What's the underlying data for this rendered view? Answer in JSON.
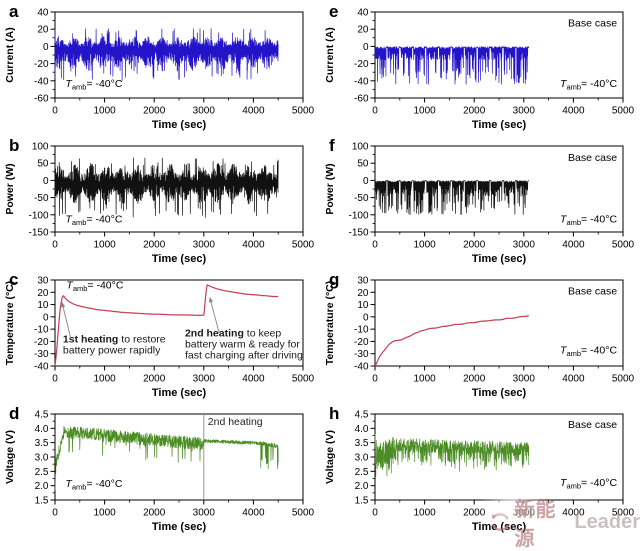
{
  "watermark": {
    "cn": "新能源",
    "en": "Leader"
  },
  "labels": {
    "tamb_T": "T",
    "tamb_sub": "amb",
    "tamb_rest": "= -40°C",
    "base_case": "Base case"
  },
  "chart_data": [
    {
      "letter": "a",
      "type": "line",
      "color": "#2414c8",
      "xlabel": "Time (sec)",
      "ylabel": "Current (A)",
      "xlim": [
        0,
        5000
      ],
      "ylim": [
        -60,
        40
      ],
      "xticks": [
        0,
        1000,
        2000,
        3000,
        4000,
        5000
      ],
      "xtick_labels": [
        "0",
        "1000",
        "2000",
        "3000",
        "4000",
        "5000"
      ],
      "yticks": [
        -60,
        -40,
        -20,
        0,
        20,
        40
      ],
      "ytick_labels": [
        "-60",
        "-40",
        "-20",
        "0",
        "20",
        "40"
      ],
      "x_minor": 500,
      "y_minor": 10,
      "tamb": {
        "x": 210,
        "y": -47,
        "anchor": "start"
      },
      "signal": {
        "kind": "bipolar",
        "t_end": 4500,
        "dt": 4,
        "seed": 11,
        "period": 300,
        "up": [
          -2,
          14
        ],
        "upSpike": [
          14,
          7,
          0.05
        ],
        "dn": [
          6,
          24
        ],
        "dnSpike": [
          28,
          12,
          0.07
        ],
        "head": [
          [
            0,
            20
          ],
          [
            2,
            -38
          ]
        ]
      }
    },
    {
      "letter": "e",
      "type": "line",
      "color": "#2414c8",
      "xlabel": "Time (sec)",
      "ylabel": "Current (A)",
      "xlim": [
        0,
        5000
      ],
      "ylim": [
        -60,
        40
      ],
      "xticks": [
        0,
        1000,
        2000,
        3000,
        4000,
        5000
      ],
      "xtick_labels": [
        "0",
        "1000",
        "2000",
        "3000",
        "4000",
        "5000"
      ],
      "yticks": [
        -60,
        -40,
        -20,
        0,
        20,
        40
      ],
      "ytick_labels": [
        "-60",
        "-40",
        "-20",
        "0",
        "20",
        "40"
      ],
      "x_minor": 500,
      "y_minor": 10,
      "base_case": {
        "x": 4880,
        "y": 23
      },
      "tamb": {
        "x": 4880,
        "y": -47,
        "anchor": "end"
      },
      "signal": {
        "kind": "unipolar",
        "t_end": 3100,
        "dt": 4,
        "seed": 33,
        "cycle": 260,
        "rest": 40,
        "top": [
          0.3,
          3
        ],
        "mid": [
          4,
          12
        ],
        "deep": [
          24,
          20
        ],
        "deepP": 0.3
      }
    },
    {
      "letter": "b",
      "type": "line",
      "color": "#111111",
      "xlabel": "Time (sec)",
      "ylabel": "Power (W)",
      "xlim": [
        0,
        5000
      ],
      "ylim": [
        -150,
        100
      ],
      "xticks": [
        0,
        1000,
        2000,
        3000,
        4000,
        5000
      ],
      "xtick_labels": [
        "0",
        "1000",
        "2000",
        "3000",
        "4000",
        "5000"
      ],
      "yticks": [
        -150,
        -100,
        -50,
        0,
        50,
        100
      ],
      "ytick_labels": [
        "-150",
        "-100",
        "-50",
        "0",
        "50",
        "100"
      ],
      "x_minor": 500,
      "y_minor": 25,
      "tamb": {
        "x": 210,
        "y": -123,
        "anchor": "start"
      },
      "signal": {
        "kind": "bipolar",
        "t_end": 4500,
        "dt": 4,
        "seed": 22,
        "period": 320,
        "up": [
          -5,
          55
        ],
        "upSpike": [
          40,
          28,
          0.04
        ],
        "dn": [
          12,
          60
        ],
        "dnSpike": [
          80,
          28,
          0.06
        ],
        "head": [
          [
            0,
            55
          ],
          [
            2,
            -95
          ]
        ]
      }
    },
    {
      "letter": "f",
      "type": "line",
      "color": "#111111",
      "xlabel": "Time (sec)",
      "ylabel": "Power (W)",
      "xlim": [
        0,
        5000
      ],
      "ylim": [
        -150,
        100
      ],
      "xticks": [
        0,
        1000,
        2000,
        3000,
        4000,
        5000
      ],
      "xtick_labels": [
        "0",
        "1000",
        "2000",
        "3000",
        "4000",
        "5000"
      ],
      "yticks": [
        -150,
        -100,
        -50,
        0,
        50,
        100
      ],
      "ytick_labels": [
        "-150",
        "-100",
        "-50",
        "0",
        "50",
        "100"
      ],
      "x_minor": 500,
      "y_minor": 25,
      "base_case": {
        "x": 4880,
        "y": 57
      },
      "tamb": {
        "x": 4880,
        "y": -123,
        "anchor": "end"
      },
      "signal": {
        "kind": "unipolar",
        "t_end": 3100,
        "dt": 4,
        "seed": 44,
        "cycle": 260,
        "rest": 40,
        "top": [
          1,
          6
        ],
        "mid": [
          8,
          38
        ],
        "deep": [
          55,
          45
        ],
        "deepP": 0.28
      }
    },
    {
      "letter": "c",
      "type": "line",
      "color": "#c44054",
      "xlabel": "Time (sec)",
      "ylabel": "Temperature (°C)",
      "xlim": [
        0,
        5000
      ],
      "ylim": [
        -40,
        30
      ],
      "xticks": [
        0,
        1000,
        2000,
        3000,
        4000,
        5000
      ],
      "xtick_labels": [
        "0",
        "1000",
        "2000",
        "3000",
        "4000",
        "5000"
      ],
      "yticks": [
        -40,
        -30,
        -20,
        -10,
        0,
        10,
        20,
        30
      ],
      "ytick_labels": [
        "-40",
        "-30",
        "-20",
        "-10",
        "0",
        "10",
        "20",
        "30"
      ],
      "x_minor": 500,
      "y_minor": 0,
      "tamb": {
        "x": 230,
        "y": 23,
        "anchor": "start"
      },
      "points": [
        [
          0,
          -40
        ],
        [
          20,
          -33
        ],
        [
          40,
          -24
        ],
        [
          60,
          -14
        ],
        [
          80,
          -4
        ],
        [
          100,
          5
        ],
        [
          120,
          11
        ],
        [
          150,
          16
        ],
        [
          170,
          17.2
        ],
        [
          200,
          15.5
        ],
        [
          250,
          13.5
        ],
        [
          300,
          12
        ],
        [
          400,
          10
        ],
        [
          500,
          8.8
        ],
        [
          600,
          7.8
        ],
        [
          700,
          7
        ],
        [
          800,
          6.3
        ],
        [
          900,
          5.7
        ],
        [
          1000,
          5.2
        ],
        [
          1200,
          4.3
        ],
        [
          1400,
          3.6
        ],
        [
          1600,
          3
        ],
        [
          1800,
          2.6
        ],
        [
          2000,
          2.2
        ],
        [
          2200,
          1.9
        ],
        [
          2400,
          1.7
        ],
        [
          2600,
          1.5
        ],
        [
          2800,
          1.4
        ],
        [
          2950,
          1.3
        ],
        [
          3000,
          1.5
        ],
        [
          3010,
          5
        ],
        [
          3030,
          14
        ],
        [
          3050,
          22
        ],
        [
          3070,
          26
        ],
        [
          3090,
          25.5
        ],
        [
          3150,
          24.5
        ],
        [
          3250,
          23
        ],
        [
          3400,
          21.5
        ],
        [
          3600,
          20
        ],
        [
          3800,
          18.8
        ],
        [
          4000,
          18
        ],
        [
          4200,
          17.3
        ],
        [
          4350,
          16.8
        ],
        [
          4500,
          16.5
        ]
      ],
      "signal": {
        "kind": "points",
        "t_end": 4500,
        "dt": 10,
        "seed": 5,
        "wiggle": 0.15,
        "wigglePeriod": 500
      },
      "annotations": [
        {
          "x": 160,
          "y": -21,
          "lh": 11,
          "lines": [
            [
              [
                "b",
                "1st heating"
              ],
              [
                "t",
                " to restore"
              ]
            ],
            [
              [
                "t",
                "battery power rapidly"
              ]
            ]
          ],
          "arrow": [
            320,
            -18,
            140,
            12
          ]
        },
        {
          "x": 2620,
          "y": -16,
          "lh": 11,
          "lines": [
            [
              [
                "b",
                "2nd heating"
              ],
              [
                "t",
                " to keep"
              ]
            ],
            [
              [
                "t",
                "battery warm & ready for"
              ]
            ],
            [
              [
                "t",
                "fast charging after driving"
              ]
            ]
          ],
          "arrow": [
            3310,
            -13,
            3120,
            16
          ]
        }
      ]
    },
    {
      "letter": "g",
      "type": "line",
      "color": "#c44054",
      "xlabel": "Time (sec)",
      "ylabel": "Temperature (°C)",
      "xlim": [
        0,
        5000
      ],
      "ylim": [
        -40,
        30
      ],
      "xticks": [
        0,
        1000,
        2000,
        3000,
        4000,
        5000
      ],
      "xtick_labels": [
        "0",
        "1000",
        "2000",
        "3000",
        "4000",
        "5000"
      ],
      "yticks": [
        -40,
        -30,
        -20,
        -10,
        0,
        10,
        20,
        30
      ],
      "ytick_labels": [
        "-40",
        "-30",
        "-20",
        "-10",
        "0",
        "10",
        "20",
        "30"
      ],
      "x_minor": 500,
      "y_minor": 0,
      "base_case": {
        "x": 4880,
        "y": 18
      },
      "tamb": {
        "x": 4880,
        "y": -30,
        "anchor": "end"
      },
      "points": [
        [
          0,
          -40
        ],
        [
          30,
          -38
        ],
        [
          60,
          -35
        ],
        [
          100,
          -32
        ],
        [
          150,
          -29
        ],
        [
          200,
          -26.5
        ],
        [
          250,
          -24
        ],
        [
          300,
          -22
        ],
        [
          350,
          -20.5
        ],
        [
          400,
          -19.5
        ],
        [
          450,
          -19
        ],
        [
          500,
          -18.8
        ],
        [
          550,
          -18.5
        ],
        [
          600,
          -17.5
        ],
        [
          650,
          -16.5
        ],
        [
          700,
          -15.5
        ],
        [
          750,
          -14.5
        ],
        [
          800,
          -13.5
        ],
        [
          850,
          -13
        ],
        [
          900,
          -12
        ],
        [
          950,
          -11
        ],
        [
          1000,
          -10.5
        ],
        [
          1100,
          -9.8
        ],
        [
          1200,
          -9
        ],
        [
          1300,
          -8.5
        ],
        [
          1400,
          -7.8
        ],
        [
          1500,
          -7
        ],
        [
          1600,
          -6.5
        ],
        [
          1700,
          -6
        ],
        [
          1800,
          -5.5
        ],
        [
          1900,
          -5
        ],
        [
          2000,
          -4.5
        ],
        [
          2100,
          -4
        ],
        [
          2200,
          -3.5
        ],
        [
          2300,
          -3
        ],
        [
          2400,
          -2.8
        ],
        [
          2500,
          -2.3
        ],
        [
          2600,
          -1.8
        ],
        [
          2700,
          -1.3
        ],
        [
          2800,
          -0.8
        ],
        [
          2900,
          -0.2
        ],
        [
          3000,
          0.3
        ],
        [
          3050,
          0.8
        ],
        [
          3100,
          1
        ]
      ],
      "signal": {
        "kind": "points",
        "t_end": 3100,
        "dt": 10,
        "seed": 6,
        "wiggle": 0.4,
        "wigglePeriod": 260
      }
    },
    {
      "letter": "d",
      "type": "line",
      "color": "#4b8c24",
      "xlabel": "Time (sec)",
      "ylabel": "Voltage (V)",
      "xlim": [
        0,
        5000
      ],
      "ylim": [
        1.5,
        4.5
      ],
      "xticks": [
        0,
        1000,
        2000,
        3000,
        4000,
        5000
      ],
      "xtick_labels": [
        "0",
        "1000",
        "2000",
        "3000",
        "4000",
        "5000"
      ],
      "yticks": [
        1.5,
        2.0,
        2.5,
        3.0,
        3.5,
        4.0,
        4.5
      ],
      "ytick_labels": [
        "1.5",
        "2.0",
        "2.5",
        "3.0",
        "3.5",
        "4.0",
        "4.5"
      ],
      "x_minor": 500,
      "y_minor": 0.25,
      "tamb": {
        "x": 210,
        "y": 1.95,
        "anchor": "start"
      },
      "vline": {
        "x": 3000,
        "label": "2nd heating",
        "lx": 3080,
        "ly": 4.12
      },
      "signal": {
        "kind": "envelope",
        "dt": 4,
        "seed": 77,
        "clamp": [
          1.85,
          4.12
        ],
        "segments": [
          [
            0,
            20,
            1.9,
            2.8,
            0.25,
            0,
            0,
            0
          ],
          [
            20,
            180,
            2.8,
            3.88,
            0.2,
            0,
            0,
            0
          ],
          [
            180,
            3000,
            3.88,
            3.45,
            0.22,
            0.035,
            0.25,
            0.45
          ],
          [
            3000,
            4150,
            3.56,
            3.48,
            0.06,
            0,
            0,
            0
          ],
          [
            4150,
            4500,
            3.48,
            3.38,
            0.08,
            0.13,
            0.3,
            0.5
          ]
        ]
      }
    },
    {
      "letter": "h",
      "type": "line",
      "color": "#4b8c24",
      "xlabel": "Time (sec)",
      "ylabel": "Voltage (V)",
      "xlim": [
        0,
        5000
      ],
      "ylim": [
        1.5,
        4.5
      ],
      "xticks": [
        0,
        1000,
        2000,
        3000,
        4000,
        5000
      ],
      "xtick_labels": [
        "0",
        "1000",
        "2000",
        "3000",
        "4000",
        "5000"
      ],
      "yticks": [
        1.5,
        2.0,
        2.5,
        3.0,
        3.5,
        4.0,
        4.5
      ],
      "ytick_labels": [
        "1.5",
        "2.0",
        "2.5",
        "3.0",
        "3.5",
        "4.0",
        "4.5"
      ],
      "x_minor": 500,
      "y_minor": 0.25,
      "base_case": {
        "x": 4880,
        "y": 4.02
      },
      "tamb": {
        "x": 4880,
        "y": 1.98,
        "anchor": "end"
      },
      "signal": {
        "kind": "envelope",
        "dt": 4,
        "seed": 88,
        "clamp": [
          1.88,
          3.8
        ],
        "segments": [
          [
            0,
            60,
            3.55,
            3.0,
            0.5,
            0.2,
            0.3,
            0.6
          ],
          [
            60,
            420,
            2.95,
            3.3,
            0.5,
            0.15,
            0.1,
            0.4
          ],
          [
            420,
            3100,
            3.42,
            3.27,
            0.24,
            0.17,
            0.25,
            0.4
          ]
        ]
      }
    }
  ]
}
